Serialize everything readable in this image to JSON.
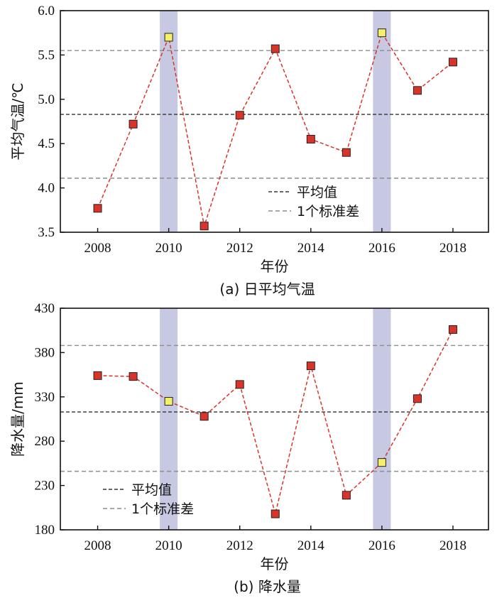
{
  "chart_data": [
    {
      "type": "line",
      "caption": "(a) 日平均气温",
      "xlabel": "年份",
      "ylabel": "平均气温/℃",
      "xlim": [
        2006.95,
        2019.0
      ],
      "ylim": [
        3.5,
        6.0
      ],
      "yticks": [
        "3.5",
        "4.0",
        "4.5",
        "5.0",
        "5.5",
        "6.0"
      ],
      "ytick_values": [
        3.5,
        4.0,
        4.5,
        5.0,
        5.5,
        6.0
      ],
      "xticks": [
        "2008",
        "2010",
        "2012",
        "2014",
        "2016",
        "2018"
      ],
      "xtick_values": [
        2008,
        2010,
        2012,
        2014,
        2016,
        2018
      ],
      "x": [
        2008,
        2009,
        2010,
        2011,
        2012,
        2013,
        2014,
        2015,
        2016,
        2017,
        2018
      ],
      "values": [
        3.77,
        4.72,
        5.7,
        3.57,
        4.82,
        5.57,
        4.55,
        4.4,
        5.75,
        5.1,
        5.42
      ],
      "highlight_years": [
        2010,
        2016
      ],
      "mean": 4.83,
      "std_upper": 5.55,
      "std_lower": 4.11,
      "legend": {
        "mean_label": "平均值",
        "std_label": "1个标准差",
        "position": "bottom-center"
      }
    },
    {
      "type": "line",
      "caption": "(b) 降水量",
      "xlabel": "年份",
      "ylabel": "降水量/mm",
      "xlim": [
        2006.95,
        2019.0
      ],
      "ylim": [
        180,
        430
      ],
      "yticks": [
        "180",
        "230",
        "280",
        "330",
        "380",
        "430"
      ],
      "ytick_values": [
        180,
        230,
        280,
        330,
        380,
        430
      ],
      "xticks": [
        "2008",
        "2010",
        "2012",
        "2014",
        "2016",
        "2018"
      ],
      "xtick_values": [
        2008,
        2010,
        2012,
        2014,
        2016,
        2018
      ],
      "x": [
        2008,
        2009,
        2010,
        2011,
        2012,
        2013,
        2014,
        2015,
        2016,
        2017,
        2018
      ],
      "values": [
        354,
        353,
        325,
        308,
        344,
        198,
        365,
        219,
        256,
        328,
        406
      ],
      "highlight_years": [
        2010,
        2016
      ],
      "mean": 313,
      "std_upper": 388,
      "std_lower": 246,
      "legend": {
        "mean_label": "平均值",
        "std_label": "1个标准差",
        "position": "bottom-left"
      }
    }
  ],
  "colors": {
    "highlight_band": "#c7c9e3",
    "marker_normal": "#d9332a",
    "marker_highlight": "#f5f068",
    "connector_line": "#d9332a",
    "mean_line": "#333333",
    "std_line": "#8c8c8c"
  }
}
